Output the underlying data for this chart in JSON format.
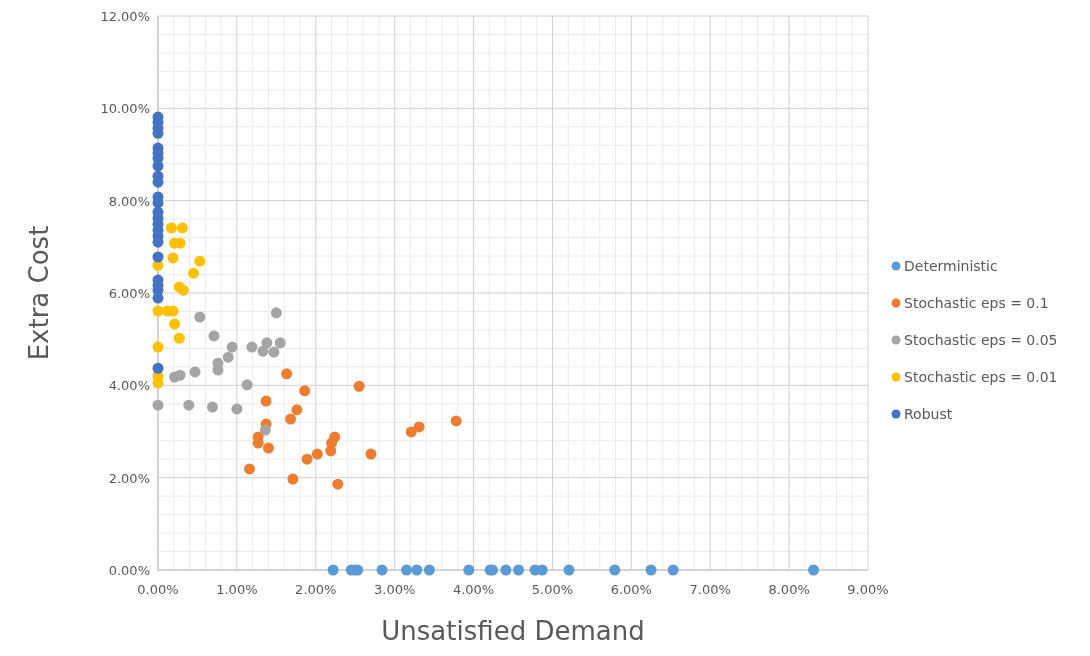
{
  "chart_data": {
    "type": "scatter",
    "xlabel": "Unsatisfied Demand",
    "ylabel": "Extra Cost",
    "xlim": [
      0,
      9
    ],
    "xticks": [
      {
        "value": 0,
        "label": "0.00%"
      },
      {
        "value": 1,
        "label": "1.00%"
      },
      {
        "value": 2,
        "label": "2.00%"
      },
      {
        "value": 3,
        "label": "3.00%"
      },
      {
        "value": 4,
        "label": "4.00%"
      },
      {
        "value": 5,
        "label": "5.00%"
      },
      {
        "value": 6,
        "label": "6.00%"
      },
      {
        "value": 7,
        "label": "7.00%"
      },
      {
        "value": 8,
        "label": "8.00%"
      },
      {
        "value": 9,
        "label": "9.00%"
      }
    ],
    "ylim": [
      0,
      12
    ],
    "yticks": [
      {
        "value": 0,
        "label": "0.00%"
      },
      {
        "value": 2,
        "label": "2.00%"
      },
      {
        "value": 4,
        "label": "4.00%"
      },
      {
        "value": 6,
        "label": "6.00%"
      },
      {
        "value": 8,
        "label": "8.00%"
      },
      {
        "value": 10,
        "label": "10.00%"
      },
      {
        "value": 12,
        "label": "12.00%"
      }
    ],
    "grid": true,
    "legend": "right",
    "marker": "circle",
    "series": [
      {
        "name": "Deterministic",
        "color": "#5b9bd5",
        "x": [
          2.22,
          2.45,
          2.5,
          2.53,
          2.84,
          3.15,
          3.28,
          3.44,
          3.94,
          4.21,
          4.24,
          4.41,
          4.57,
          4.78,
          4.87,
          5.21,
          5.79,
          6.25,
          6.53,
          8.31
        ],
        "values": [
          0,
          0,
          0,
          0,
          0,
          0,
          0,
          0,
          0,
          0,
          0,
          0,
          0,
          0,
          0,
          0,
          0,
          0,
          0,
          0
        ]
      },
      {
        "name": "Stochastic eps = 0.1",
        "color": "#ed7d31",
        "x": [
          1.63,
          2.55,
          1.86,
          1.37,
          1.76,
          1.68,
          1.37,
          3.78,
          3.31,
          3.21,
          1.27,
          1.27,
          1.4,
          2.24,
          2.2,
          2.19,
          2.02,
          1.89,
          2.7,
          1.16,
          1.71,
          2.28
        ],
        "values": [
          4.25,
          3.98,
          3.88,
          3.66,
          3.47,
          3.27,
          3.16,
          3.23,
          3.1,
          2.99,
          2.88,
          2.75,
          2.64,
          2.88,
          2.75,
          2.58,
          2.51,
          2.4,
          2.51,
          2.19,
          1.97,
          1.86
        ]
      },
      {
        "name": "Stochastic eps = 0.05",
        "color": "#a5a5a5",
        "x": [
          0.53,
          0.71,
          0.94,
          0.89,
          0.76,
          0.76,
          0.47,
          0.28,
          0.21,
          1.13,
          0,
          0.39,
          0.69,
          1.0,
          1.5,
          1.19,
          1.33,
          1.38,
          1.47,
          1.55,
          1.36
        ],
        "values": [
          5.48,
          5.07,
          4.83,
          4.61,
          4.48,
          4.33,
          4.29,
          4.22,
          4.18,
          4.01,
          3.57,
          3.57,
          3.53,
          3.49,
          5.57,
          4.83,
          4.74,
          4.92,
          4.72,
          4.92,
          3.03
        ]
      },
      {
        "name": "Stochastic eps = 0.01",
        "color": "#ffc000",
        "x": [
          0.17,
          0.31,
          0.21,
          0.28,
          0.19,
          0.53,
          0.45,
          0.27,
          0.32,
          0,
          0.19,
          0.12,
          0.21,
          0.27,
          0,
          0,
          0,
          0
        ],
        "values": [
          7.41,
          7.41,
          7.08,
          7.08,
          6.76,
          6.69,
          6.43,
          6.13,
          6.06,
          5.61,
          5.61,
          5.61,
          5.33,
          5.02,
          4.83,
          4.05,
          6.6,
          4.2
        ]
      },
      {
        "name": "Robust",
        "color": "#4472c4",
        "x": [
          0,
          0,
          0,
          0,
          0,
          0,
          0,
          0,
          0,
          0,
          0,
          0,
          0,
          0,
          0,
          0,
          0,
          0,
          0,
          0,
          0,
          0,
          0,
          0
        ],
        "values": [
          9.81,
          9.7,
          9.57,
          9.46,
          9.14,
          9.03,
          8.92,
          8.75,
          8.53,
          8.4,
          8.08,
          7.95,
          7.75,
          7.62,
          7.49,
          7.36,
          7.23,
          7.1,
          6.78,
          6.28,
          6.17,
          6.06,
          5.89,
          4.37
        ]
      }
    ]
  }
}
